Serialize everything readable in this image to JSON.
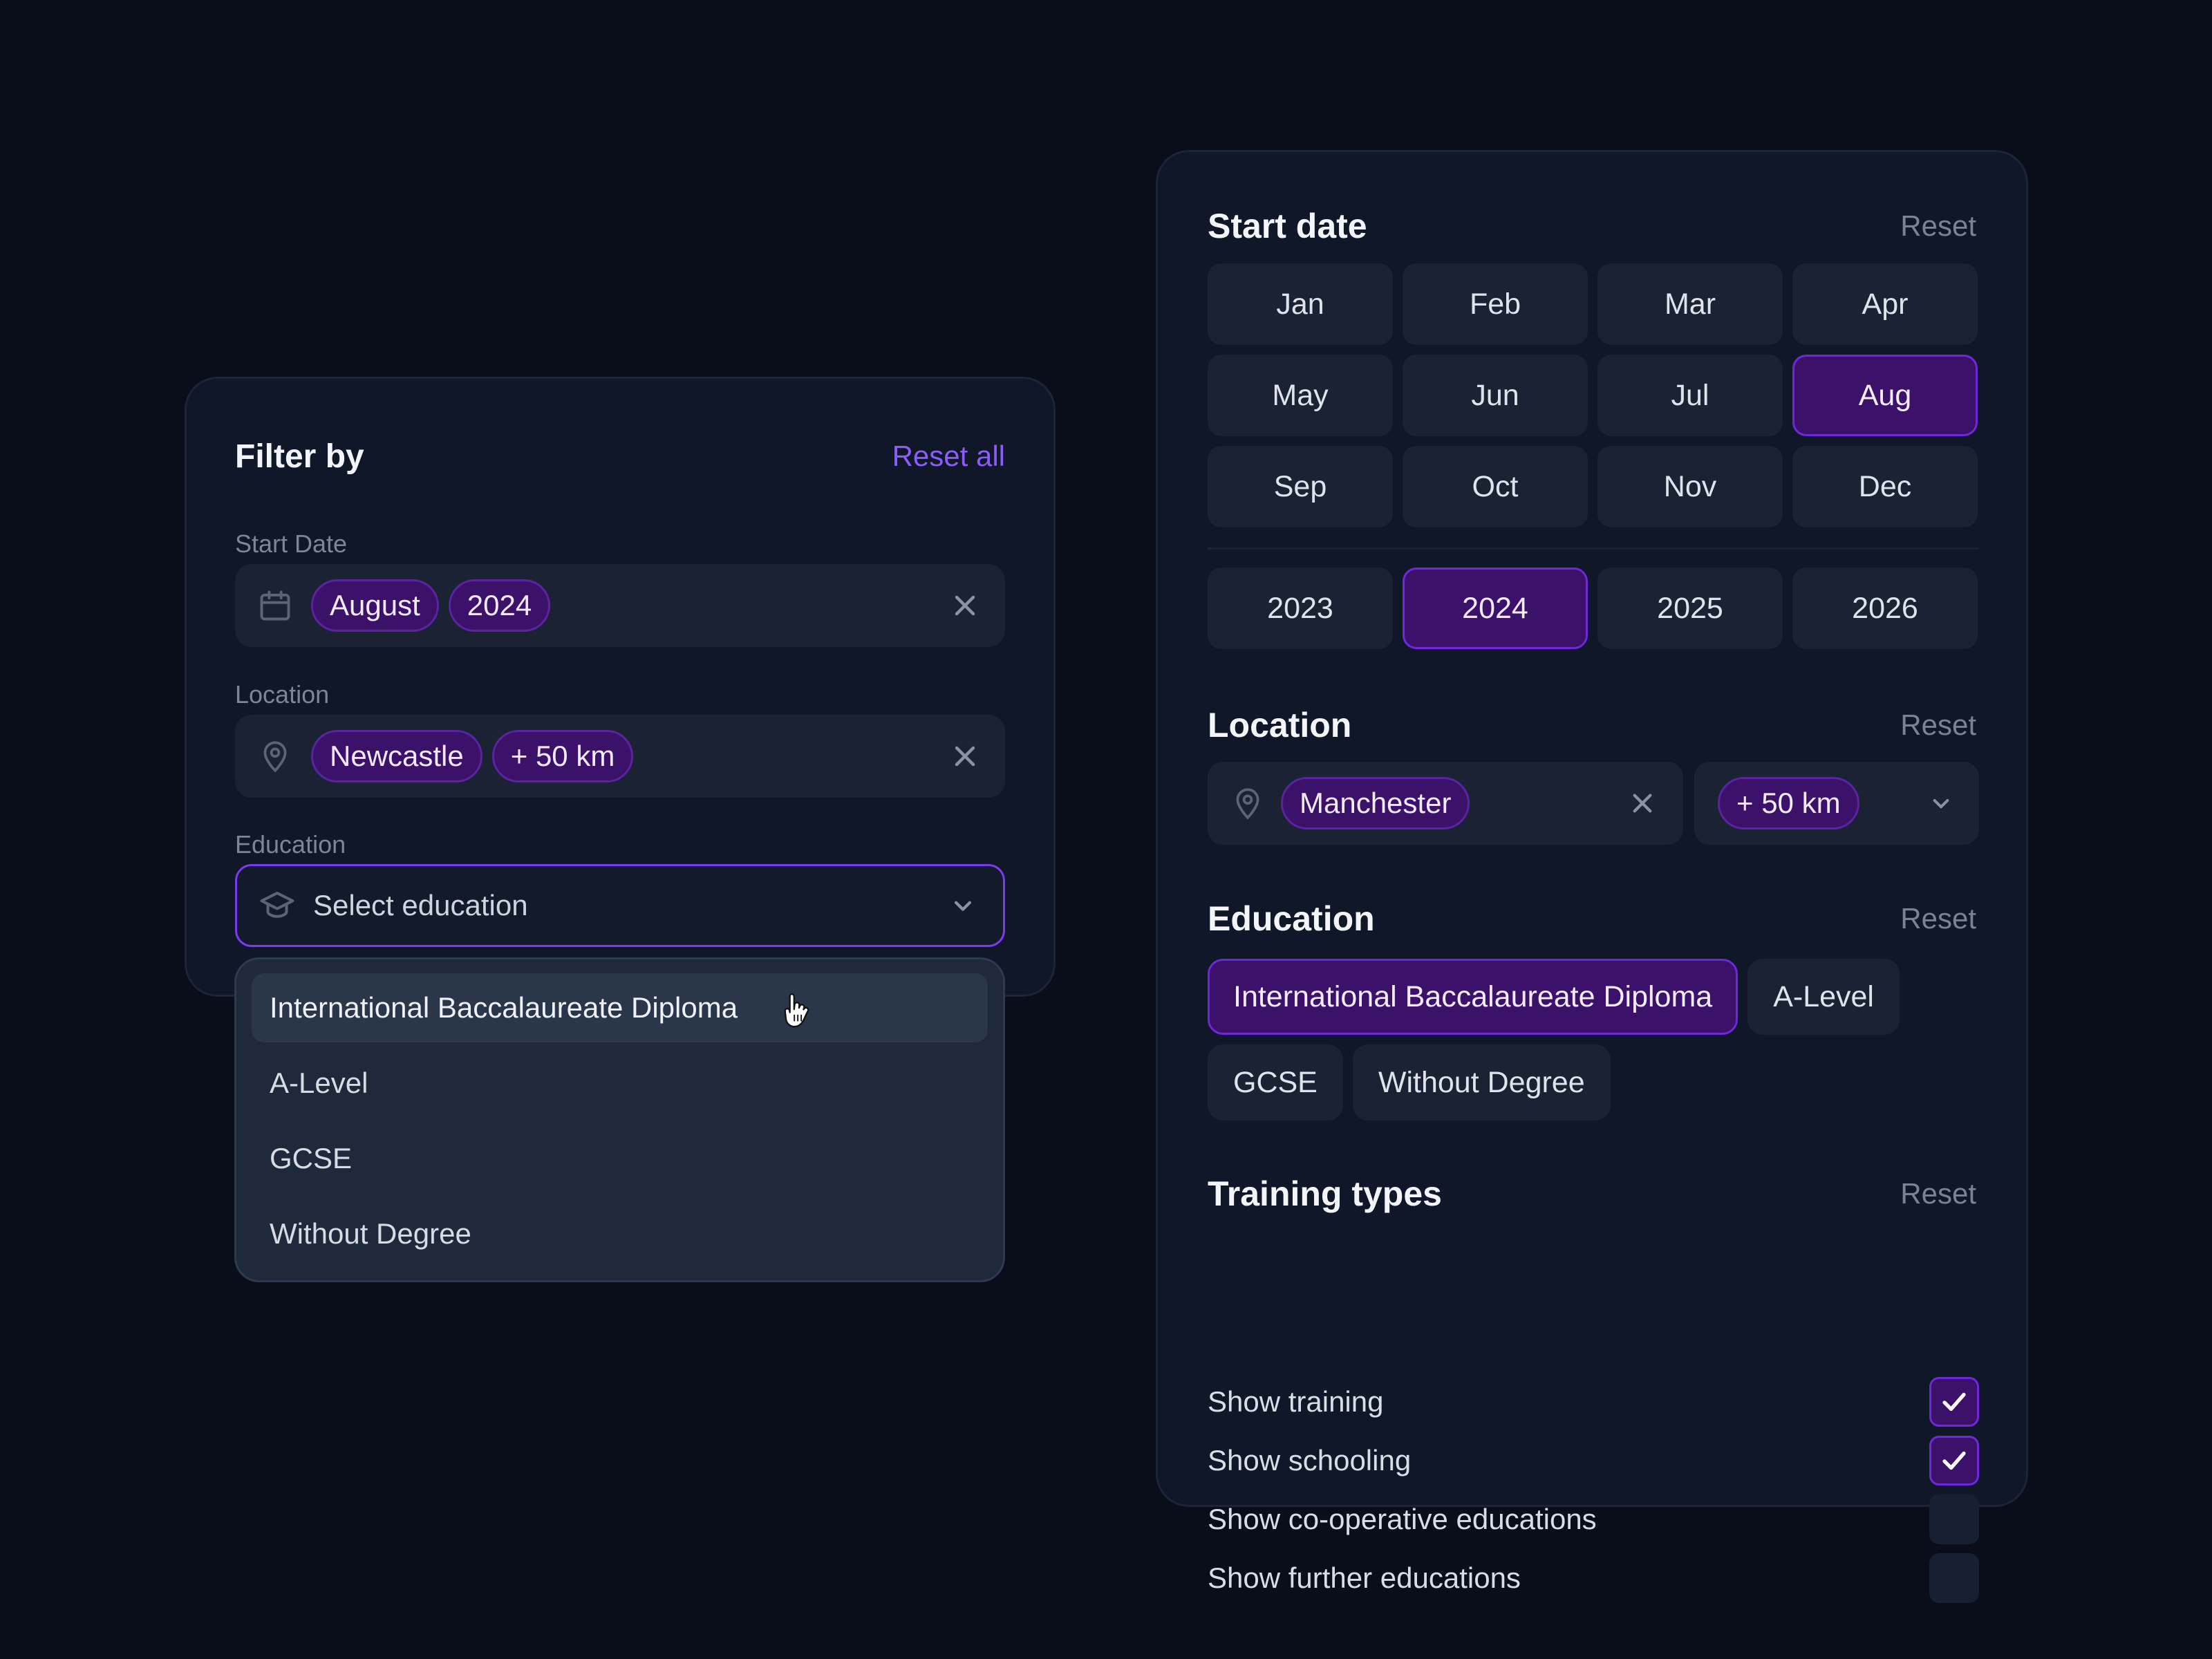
{
  "filter": {
    "title": "Filter by",
    "reset_all": "Reset all",
    "start_date": {
      "label": "Start Date",
      "chips": [
        "August",
        "2024"
      ]
    },
    "location": {
      "label": "Location",
      "chips": [
        "Newcastle",
        "+ 50 km"
      ]
    },
    "education": {
      "label": "Education",
      "placeholder": "Select education",
      "options": [
        "International Baccalaureate Diploma",
        "A-Level",
        "GCSE",
        "Without Degree"
      ],
      "hovered": 0
    }
  },
  "detail": {
    "start_date": {
      "title": "Start date",
      "reset": "Reset",
      "months": [
        "Jan",
        "Feb",
        "Mar",
        "Apr",
        "May",
        "Jun",
        "Jul",
        "Aug",
        "Sep",
        "Oct",
        "Nov",
        "Dec"
      ],
      "selected_month": "Aug",
      "years": [
        "2023",
        "2024",
        "2025",
        "2026"
      ],
      "selected_year": "2024"
    },
    "location": {
      "title": "Location",
      "reset": "Reset",
      "city": "Manchester",
      "radius": "+ 50 km"
    },
    "education": {
      "title": "Education",
      "reset": "Reset",
      "options": [
        "International Baccalaureate Diploma",
        "A-Level",
        "GCSE",
        "Without Degree"
      ],
      "selected": "International Baccalaureate Diploma"
    },
    "training": {
      "title": "Training types",
      "reset": "Reset",
      "items": [
        {
          "label": "Show training",
          "checked": true
        },
        {
          "label": "Show schooling",
          "checked": true
        },
        {
          "label": "Show co-operative educations",
          "checked": false
        },
        {
          "label": "Show further educations",
          "checked": false
        }
      ]
    }
  },
  "icons": {
    "calendar": "calendar-icon",
    "pin": "map-pin-icon",
    "cap": "graduation-cap-icon",
    "close": "close-icon",
    "chevron": "chevron-down-icon",
    "check": "check-icon",
    "cursor": "hand-pointer-icon"
  },
  "colors": {
    "accent": "#8b5cf6",
    "chip_bg": "#3b1169",
    "chip_border": "#6d28d9",
    "panel": "#0f1729",
    "field": "#1a2234",
    "page_bg": "#090e1a"
  }
}
